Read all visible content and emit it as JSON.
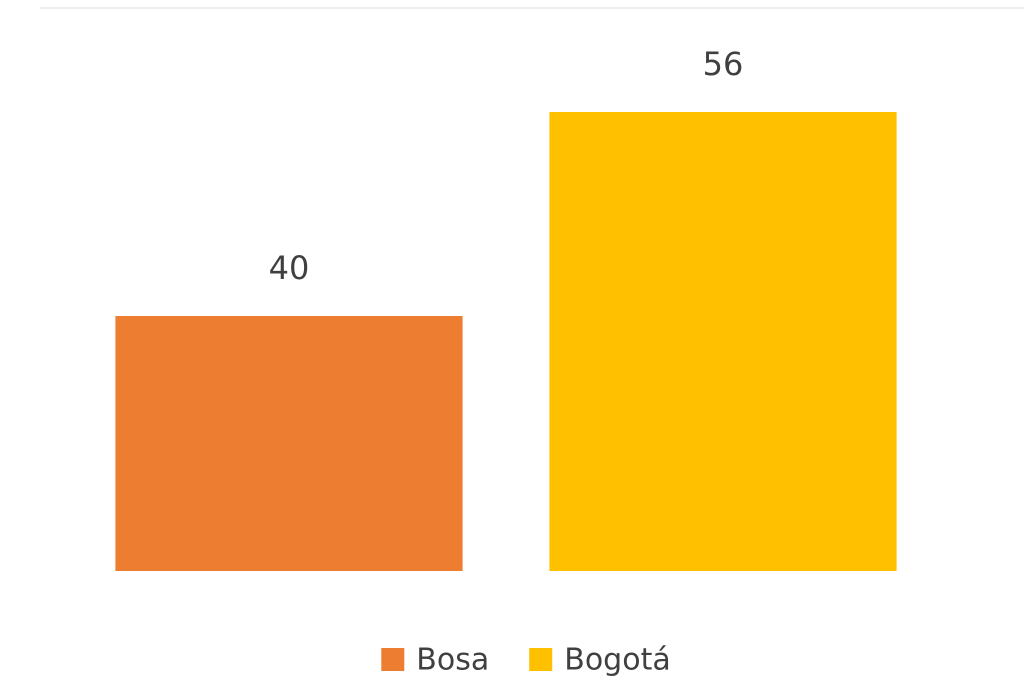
{
  "chart_data": {
    "type": "bar",
    "series": [
      {
        "name": "Bosa",
        "color": "#ed7d31",
        "values": [
          40
        ]
      },
      {
        "name": "Bogotá",
        "color": "#ffc000",
        "values": [
          56
        ]
      }
    ],
    "ylim": [
      20,
      60
    ],
    "data_labels": true,
    "legend": "bottom"
  }
}
